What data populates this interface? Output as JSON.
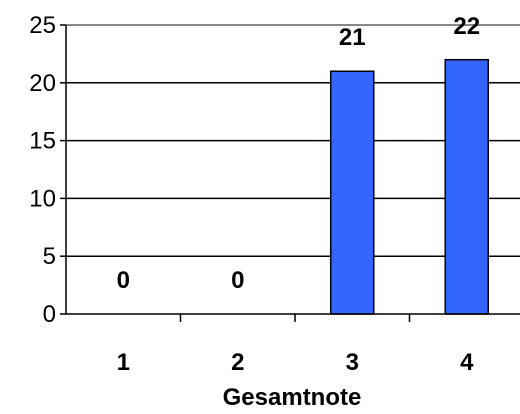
{
  "chart_data": {
    "type": "bar",
    "categories": [
      "1",
      "2",
      "3",
      "4"
    ],
    "values": [
      0,
      0,
      21,
      22
    ],
    "data_labels": [
      "0",
      "0",
      "21",
      "22"
    ],
    "xlabel": "Gesamtnote",
    "ylabel": "",
    "ylim": [
      0,
      25
    ],
    "y_ticks": [
      "0",
      "5",
      "10",
      "15",
      "20",
      "25"
    ],
    "grid": true,
    "bar_color": "#3366FF"
  }
}
